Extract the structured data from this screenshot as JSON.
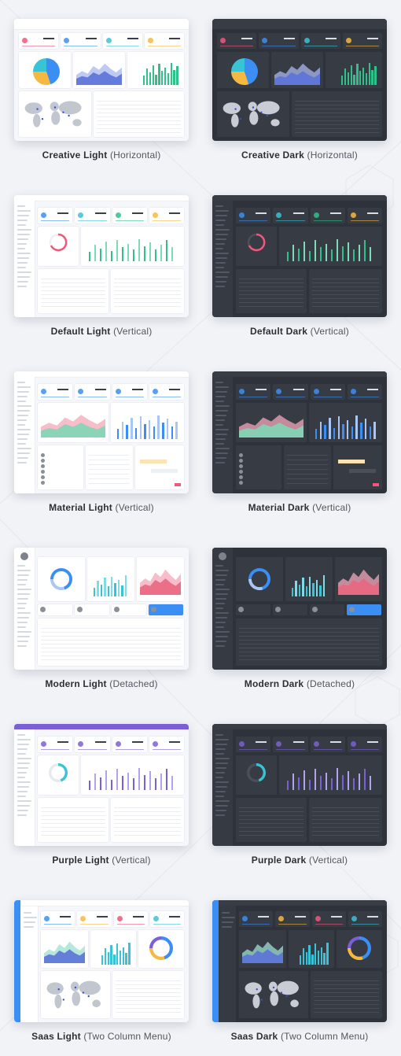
{
  "colors": {
    "background": "#f1f3f7",
    "card_light": "#f6f7fb",
    "card_dark": "#2e323a",
    "primary": "#3b8ef3",
    "pink": "#f0577a",
    "green": "#2ec28a",
    "purple": "#7b5fd6",
    "teal": "#38c3d6",
    "amber": "#f5b942"
  },
  "themes": [
    {
      "name": "Creative Light",
      "layout": "(Horizontal)",
      "variant": "light",
      "style": "creative"
    },
    {
      "name": "Creative Dark",
      "layout": "(Horizontal)",
      "variant": "dark",
      "style": "creative"
    },
    {
      "name": "Default Light",
      "layout": "(Vertical)",
      "variant": "light",
      "style": "default"
    },
    {
      "name": "Default Dark",
      "layout": "(Vertical)",
      "variant": "dark",
      "style": "default"
    },
    {
      "name": "Material Light",
      "layout": "(Vertical)",
      "variant": "light",
      "style": "material"
    },
    {
      "name": "Material Dark",
      "layout": "(Vertical)",
      "variant": "dark",
      "style": "material"
    },
    {
      "name": "Modern Light",
      "layout": "(Detached)",
      "variant": "light",
      "style": "modern"
    },
    {
      "name": "Modern Dark",
      "layout": "(Detached)",
      "variant": "dark",
      "style": "modern"
    },
    {
      "name": "Purple Light",
      "layout": "(Vertical)",
      "variant": "light",
      "style": "purple"
    },
    {
      "name": "Purple Dark",
      "layout": "(Vertical)",
      "variant": "dark",
      "style": "purple"
    },
    {
      "name": "Saas Light",
      "layout": "(Two Column Menu)",
      "variant": "light",
      "style": "saas"
    },
    {
      "name": "Saas Dark",
      "layout": "(Two Column Menu)",
      "variant": "dark",
      "style": "saas"
    }
  ]
}
